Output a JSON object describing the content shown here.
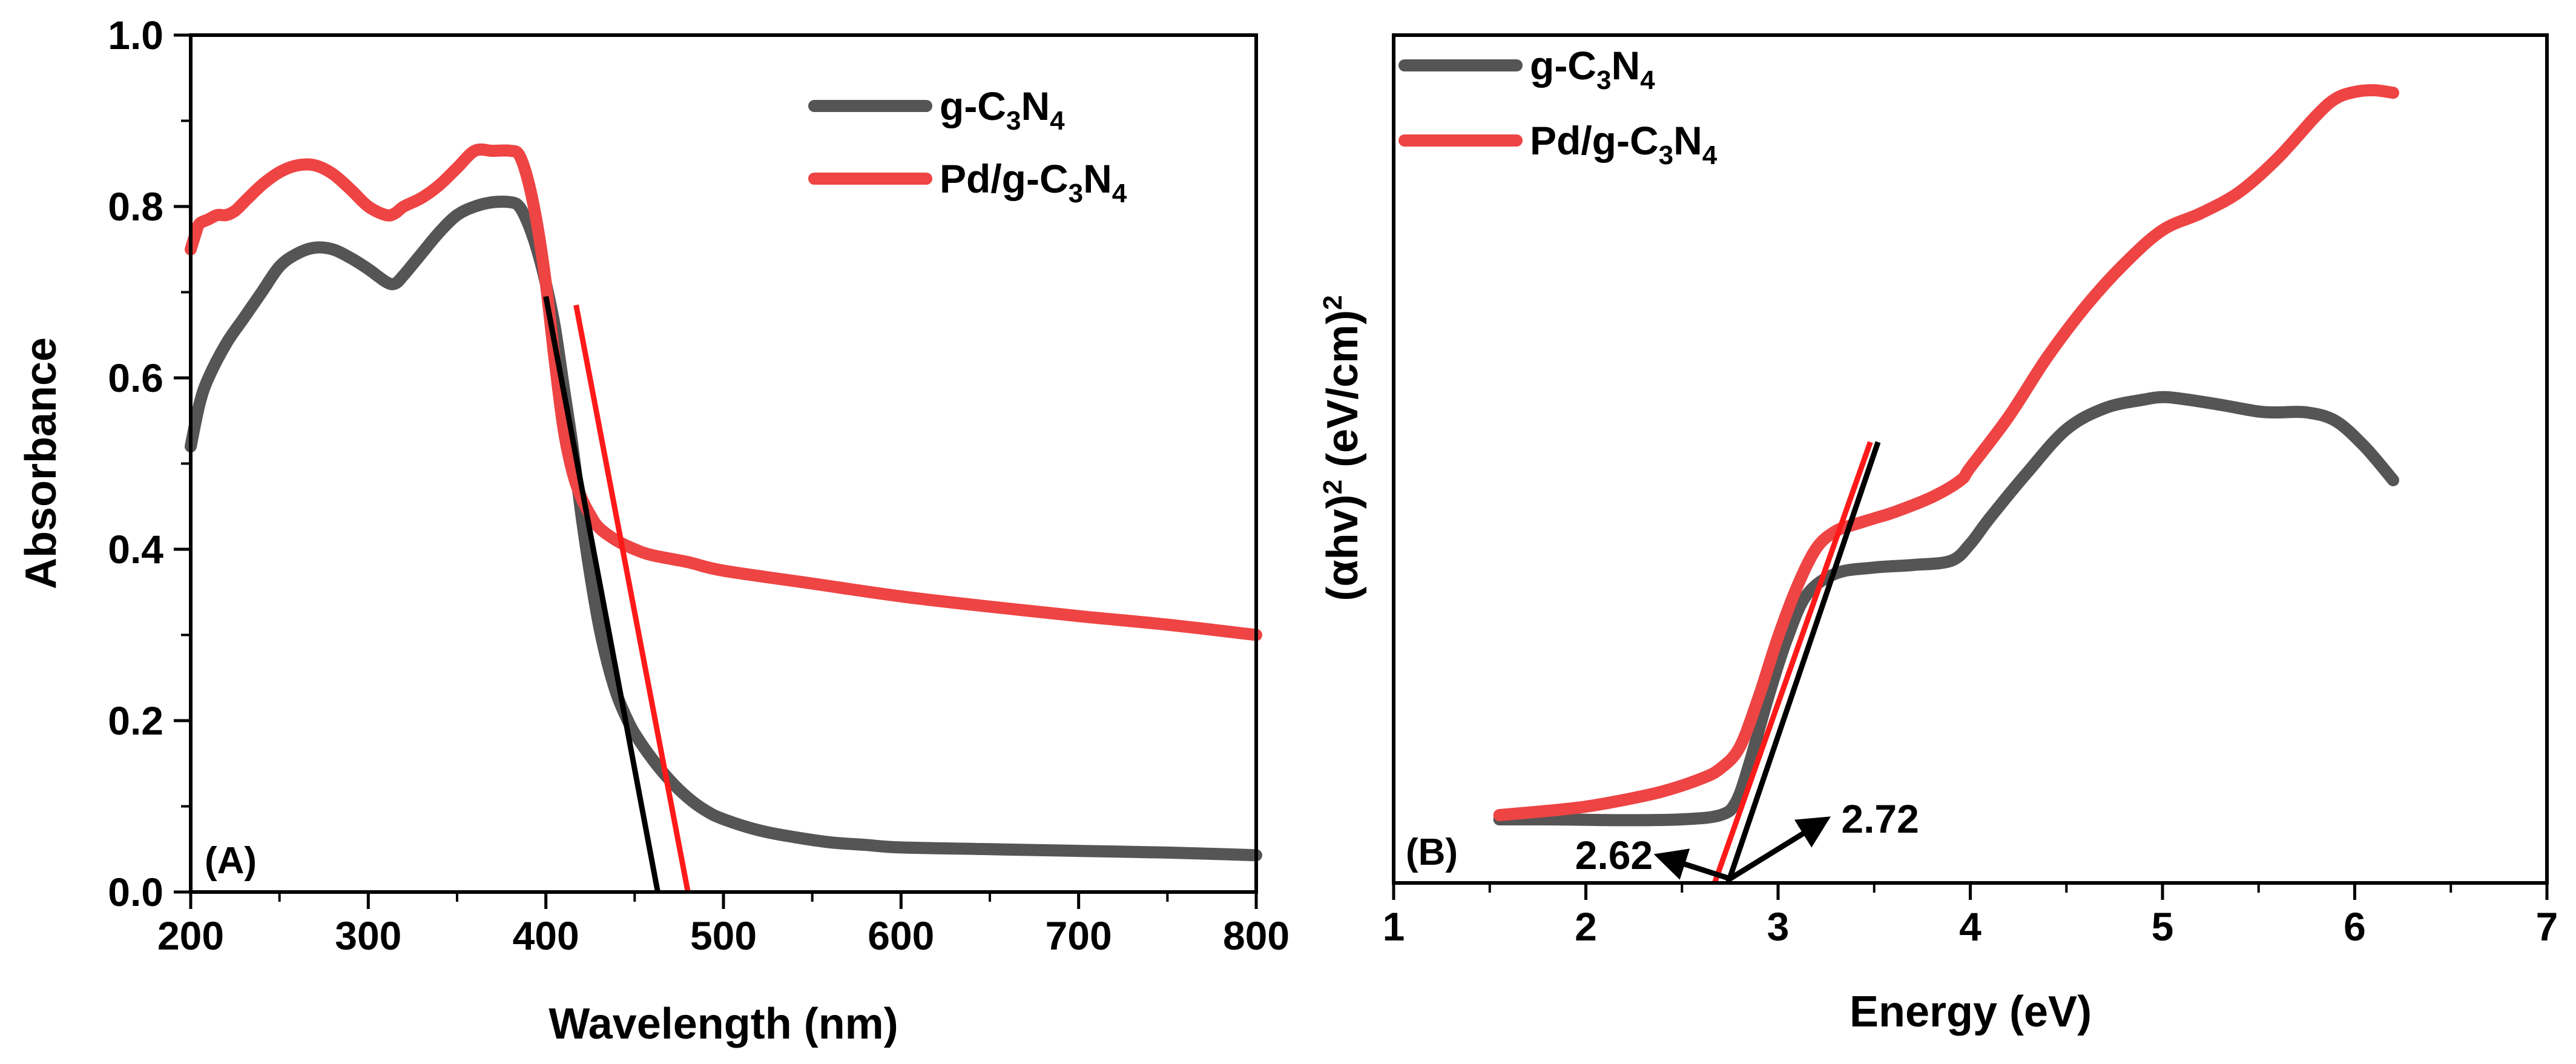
{
  "chart_data": [
    {
      "type": "line",
      "panel_label": "(A)",
      "xlabel": "Wavelength (nm)",
      "ylabel": "Absorbance",
      "xlim": [
        200,
        800
      ],
      "ylim": [
        0.0,
        1.0
      ],
      "xticks": [
        "200",
        "300",
        "400",
        "500",
        "600",
        "700",
        "800"
      ],
      "yticks": [
        "0.0",
        "0.2",
        "0.4",
        "0.6",
        "0.8",
        "1.0"
      ],
      "legend_position": "top-right",
      "series": [
        {
          "name": "g-C3N4",
          "legend": {
            "a": "g-C",
            "s1": "3",
            "b": "N",
            "s2": "4"
          },
          "color": "#555555",
          "x": [
            200,
            205,
            210,
            220,
            230,
            240,
            250,
            260,
            270,
            280,
            290,
            300,
            310,
            315,
            320,
            330,
            340,
            350,
            360,
            370,
            380,
            385,
            390,
            395,
            400,
            405,
            410,
            415,
            420,
            425,
            430,
            435,
            440,
            445,
            450,
            460,
            470,
            480,
            490,
            500,
            520,
            540,
            560,
            580,
            600,
            650,
            700,
            750,
            800
          ],
          "y": [
            0.52,
            0.57,
            0.6,
            0.64,
            0.67,
            0.7,
            0.73,
            0.745,
            0.752,
            0.75,
            0.74,
            0.727,
            0.712,
            0.71,
            0.72,
            0.745,
            0.77,
            0.79,
            0.8,
            0.805,
            0.805,
            0.8,
            0.78,
            0.75,
            0.71,
            0.66,
            0.59,
            0.52,
            0.44,
            0.37,
            0.31,
            0.265,
            0.23,
            0.205,
            0.185,
            0.155,
            0.13,
            0.11,
            0.095,
            0.085,
            0.072,
            0.064,
            0.058,
            0.055,
            0.052,
            0.05,
            0.048,
            0.046,
            0.043
          ]
        },
        {
          "name": "Pd/g-C3N4",
          "legend": {
            "a": "Pd/g-C",
            "s1": "3",
            "b": "N",
            "s2": "4"
          },
          "color": "#ee4444",
          "x": [
            200,
            203,
            205,
            210,
            215,
            220,
            225,
            230,
            240,
            250,
            260,
            270,
            280,
            290,
            300,
            310,
            315,
            320,
            330,
            340,
            350,
            360,
            370,
            380,
            385,
            390,
            395,
            400,
            405,
            410,
            415,
            420,
            425,
            430,
            440,
            450,
            460,
            480,
            500,
            550,
            600,
            650,
            700,
            750,
            800
          ],
          "y": [
            0.75,
            0.77,
            0.78,
            0.785,
            0.79,
            0.79,
            0.795,
            0.805,
            0.825,
            0.84,
            0.848,
            0.848,
            0.838,
            0.82,
            0.8,
            0.79,
            0.792,
            0.8,
            0.81,
            0.825,
            0.845,
            0.865,
            0.865,
            0.865,
            0.86,
            0.83,
            0.78,
            0.71,
            0.62,
            0.54,
            0.49,
            0.46,
            0.44,
            0.425,
            0.41,
            0.4,
            0.393,
            0.385,
            0.375,
            0.36,
            0.345,
            0.333,
            0.322,
            0.312,
            0.3
          ]
        }
      ],
      "tangents": [
        {
          "color": "#000000",
          "x": [
            400,
            463
          ],
          "y": [
            0.695,
            0.0
          ]
        },
        {
          "color": "#ff1a1a",
          "x": [
            417,
            480
          ],
          "y": [
            0.685,
            0.0
          ]
        }
      ]
    },
    {
      "type": "line",
      "panel_label": "(B)",
      "xlabel": "Energy (eV)",
      "ylabel": "(αhv)² (eV/cm)²",
      "ylabel_parts": {
        "a": "(αhv)",
        "e1": "2",
        "b": " (eV/cm)",
        "e2": "2"
      },
      "xlim": [
        1,
        7
      ],
      "ylim": [
        0,
        100
      ],
      "xticks": [
        "1",
        "2",
        "3",
        "4",
        "5",
        "6",
        "7"
      ],
      "legend_position": "top-left",
      "series": [
        {
          "name": "g-C3N4",
          "legend": {
            "a": "g-C",
            "s1": "3",
            "b": "N",
            "s2": "4"
          },
          "color": "#555555",
          "x": [
            1.55,
            1.8,
            2.2,
            2.5,
            2.7,
            2.78,
            2.85,
            2.95,
            3.05,
            3.15,
            3.3,
            3.5,
            3.7,
            3.9,
            4.0,
            4.1,
            4.3,
            4.5,
            4.7,
            4.9,
            5.0,
            5.1,
            5.3,
            5.5,
            5.6,
            5.75,
            5.9,
            6.05,
            6.2
          ],
          "y": [
            7.5,
            7.5,
            7.4,
            7.5,
            8.0,
            9.5,
            14,
            22,
            29,
            34,
            36.5,
            37.2,
            37.5,
            38,
            40,
            43,
            48.5,
            53.5,
            56,
            57,
            57.3,
            57.1,
            56.4,
            55.6,
            55.5,
            55.5,
            54.5,
            51.5,
            47.5
          ]
        },
        {
          "name": "Pd/g-C3N4",
          "legend": {
            "a": "Pd/g-C",
            "s1": "3",
            "b": "N",
            "s2": "4"
          },
          "color": "#ee4444",
          "x": [
            1.55,
            1.8,
            2.0,
            2.2,
            2.4,
            2.6,
            2.7,
            2.8,
            2.9,
            3.0,
            3.1,
            3.2,
            3.3,
            3.4,
            3.5,
            3.6,
            3.8,
            3.95,
            4.0,
            4.2,
            4.4,
            4.6,
            4.8,
            5.0,
            5.2,
            5.4,
            5.6,
            5.8,
            5.9,
            6.0,
            6.1,
            6.2
          ],
          "y": [
            8,
            8.5,
            9,
            9.8,
            10.8,
            12.3,
            13.5,
            16,
            22,
            29,
            35,
            39.5,
            41.5,
            42.3,
            43,
            43.7,
            45.5,
            47.5,
            49,
            55,
            62,
            68,
            73,
            77,
            79,
            81.5,
            85.5,
            90.5,
            92.5,
            93.3,
            93.5,
            93.2
          ]
        }
      ],
      "tangents": [
        {
          "color": "#000000",
          "x": [
            2.74,
            3.52
          ],
          "y": [
            0,
            52
          ]
        },
        {
          "color": "#ff1a1a",
          "x": [
            2.67,
            3.48
          ],
          "y": [
            0,
            52
          ]
        }
      ],
      "annotations": [
        {
          "text": "2.62",
          "tail_x": 2.75,
          "tail_y": 0.5,
          "head_x": 2.38,
          "head_y": 3.2
        },
        {
          "text": "2.72",
          "tail_x": 2.75,
          "tail_y": 0.5,
          "head_x": 3.25,
          "head_y": 7.5
        }
      ]
    }
  ]
}
